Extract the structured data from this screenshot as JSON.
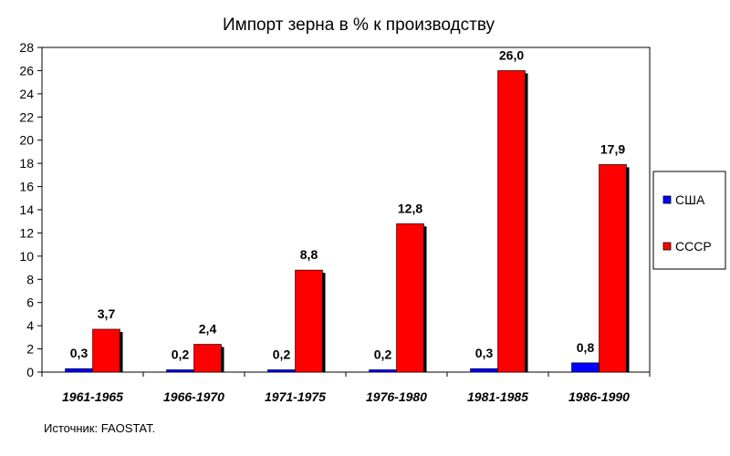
{
  "chart_data": {
    "type": "bar",
    "title": "Импорт зерна в % к производству",
    "xlabel": "",
    "ylabel": "",
    "categories": [
      "1961-1965",
      "1966-1970",
      "1971-1975",
      "1976-1980",
      "1981-1985",
      "1986-1990"
    ],
    "series": [
      {
        "name": "США",
        "color": "#0000ff",
        "values": [
          0.3,
          0.2,
          0.2,
          0.2,
          0.3,
          0.8
        ],
        "labels": [
          "0,3",
          "0,2",
          "0,2",
          "0,2",
          "0,3",
          "0,8"
        ]
      },
      {
        "name": "СССР",
        "color": "#ff0000",
        "values": [
          3.7,
          2.4,
          8.8,
          12.8,
          26.0,
          17.9
        ],
        "labels": [
          "3,7",
          "2,4",
          "8,8",
          "12,8",
          "26,0",
          "17,9"
        ]
      }
    ],
    "ylim": [
      0,
      28
    ],
    "yticks": [
      0,
      2,
      4,
      6,
      8,
      10,
      12,
      14,
      16,
      18,
      20,
      22,
      24,
      26,
      28
    ],
    "grid": false,
    "legend": "right",
    "source": "Источник: FAOSTAT."
  }
}
